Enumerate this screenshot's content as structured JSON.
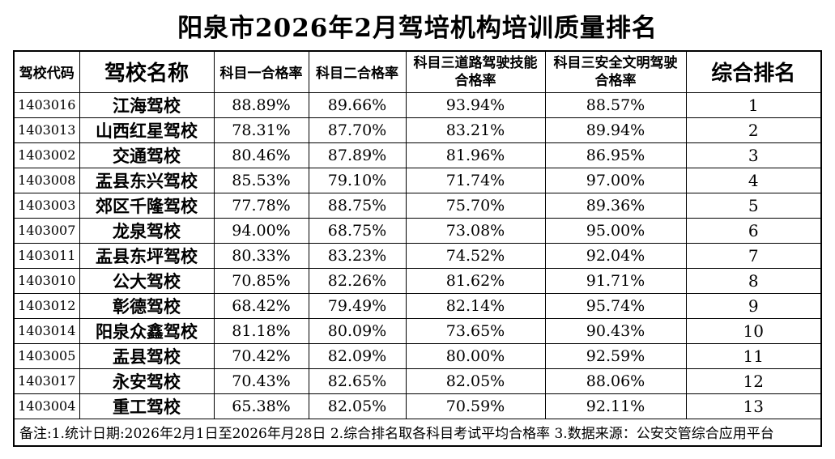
{
  "page": {
    "title": "阳泉市2026年2月驾培机构培训质量排名"
  },
  "table": {
    "columns": [
      {
        "label": "驾校代码"
      },
      {
        "label": "驾校名称"
      },
      {
        "label": "科目一合格率"
      },
      {
        "label": "科目二合格率"
      },
      {
        "label": "科目三道路驾驶技能\n合格率"
      },
      {
        "label": "科目三安全文明驾驶\n合格率"
      },
      {
        "label": "综合排名"
      }
    ],
    "rows": [
      [
        "1403016",
        "江海驾校",
        "88.89%",
        "89.66%",
        "93.94%",
        "88.57%",
        "1"
      ],
      [
        "1403013",
        "山西红星驾校",
        "78.31%",
        "87.70%",
        "83.21%",
        "89.94%",
        "2"
      ],
      [
        "1403002",
        "交通驾校",
        "80.46%",
        "87.89%",
        "81.96%",
        "86.95%",
        "3"
      ],
      [
        "1403008",
        "盂县东兴驾校",
        "85.53%",
        "79.10%",
        "71.74%",
        "97.00%",
        "4"
      ],
      [
        "1403003",
        "郊区千隆驾校",
        "77.78%",
        "88.75%",
        "75.70%",
        "89.36%",
        "5"
      ],
      [
        "1403007",
        "龙泉驾校",
        "94.00%",
        "68.75%",
        "73.08%",
        "95.00%",
        "6"
      ],
      [
        "1403011",
        "盂县东坪驾校",
        "80.33%",
        "83.23%",
        "74.52%",
        "92.04%",
        "7"
      ],
      [
        "1403010",
        "公大驾校",
        "70.85%",
        "82.26%",
        "81.62%",
        "91.71%",
        "8"
      ],
      [
        "1403012",
        "彰德驾校",
        "68.42%",
        "79.49%",
        "82.14%",
        "95.74%",
        "9"
      ],
      [
        "1403014",
        "阳泉众鑫驾校",
        "81.18%",
        "80.09%",
        "73.65%",
        "90.43%",
        "10"
      ],
      [
        "1403005",
        "盂县驾校",
        "70.42%",
        "82.09%",
        "80.00%",
        "92.59%",
        "11"
      ],
      [
        "1403017",
        "永安驾校",
        "70.43%",
        "82.65%",
        "82.05%",
        "88.06%",
        "12"
      ],
      [
        "1403004",
        "重工驾校",
        "65.38%",
        "82.05%",
        "70.59%",
        "92.11%",
        "13"
      ]
    ],
    "cell_names": [
      "school-code",
      "school-name",
      "subject1-pass-rate",
      "subject2-pass-rate",
      "subject3-road-skill-pass-rate",
      "subject3-safe-driving-pass-rate",
      "overall-rank"
    ],
    "footnote": "备注:1.统计日期:2026年2月1日至2026年月28日  2.综合排名取各科目考试平均合格率   3.数据来源：公安交管综合应用平台"
  },
  "colors": {
    "background": "#ffffff",
    "text": "#000000",
    "border": "#000000"
  }
}
